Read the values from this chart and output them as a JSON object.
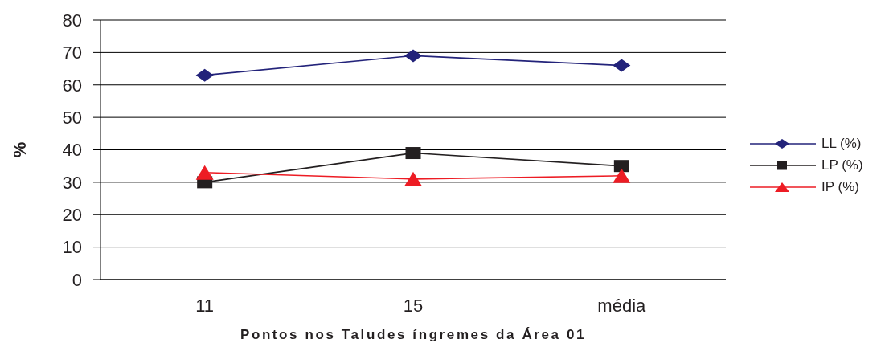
{
  "chart_data": {
    "type": "line",
    "xlabel": "Pontos nos Taludes íngremes da Área 01",
    "ylabel": "%",
    "categories": [
      "11",
      "15",
      "média"
    ],
    "series": [
      {
        "name": "LL (%)",
        "color": "#23237a",
        "values": [
          63,
          69,
          66
        ],
        "marker": "diamond"
      },
      {
        "name": "LP (%)",
        "color": "#231f20",
        "values": [
          30,
          39,
          35
        ],
        "marker": "square"
      },
      {
        "name": "IP (%)",
        "color": "#ed1c24",
        "values": [
          33,
          31,
          32
        ],
        "marker": "triangle"
      }
    ],
    "ylim": [
      0,
      80
    ],
    "yticks": [
      0,
      10,
      20,
      30,
      40,
      50,
      60,
      70,
      80
    ],
    "grid": "y",
    "legend": "right",
    "line_style": "solid"
  }
}
